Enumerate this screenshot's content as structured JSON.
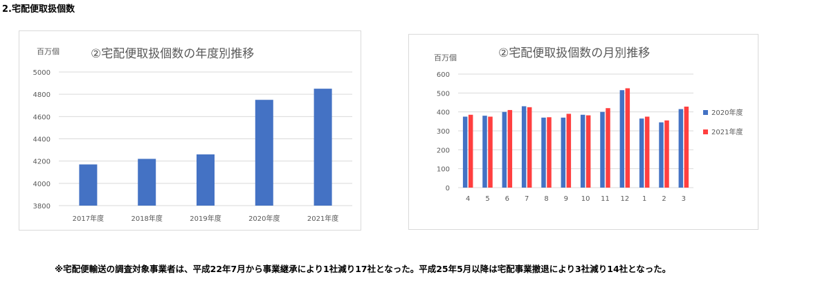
{
  "section_title": "2.宅配便取扱個数",
  "note": "※宅配便輸送の調査対象事業者は、平成22年7月から事業継承により1社減り17社となった。平成25年5月以降は宅配事業撤退により3社減り14社となった。",
  "colors": {
    "bar_2020": "#4472c4",
    "bar_2021": "#ff3f3f",
    "grid": "#d9d9d9",
    "axis_text": "#595959"
  },
  "chart_data": [
    {
      "type": "bar",
      "title": "②宅配便取扱個数の年度別推移",
      "ylabel": "百万個",
      "xlabel": "",
      "categories": [
        "2017年度",
        "2018年度",
        "2019年度",
        "2020年度",
        "2021年度"
      ],
      "values": [
        4170,
        4220,
        4260,
        4750,
        4850
      ],
      "ylim": [
        3800,
        5000
      ],
      "yticks": [
        3800,
        4000,
        4200,
        4400,
        4600,
        4800,
        5000
      ],
      "grid": true,
      "legend": "none"
    },
    {
      "type": "bar",
      "title": "②宅配便取扱個数の月別推移",
      "ylabel": "百万個",
      "xlabel": "",
      "categories": [
        "4",
        "5",
        "6",
        "7",
        "8",
        "9",
        "10",
        "11",
        "12",
        "1",
        "2",
        "3"
      ],
      "series": [
        {
          "name": "2020年度",
          "values": [
            375,
            380,
            400,
            430,
            370,
            370,
            385,
            400,
            515,
            365,
            345,
            415
          ]
        },
        {
          "name": "2021年度",
          "values": [
            385,
            375,
            410,
            425,
            372,
            390,
            382,
            420,
            525,
            375,
            355,
            428
          ]
        }
      ],
      "ylim": [
        0,
        600
      ],
      "yticks": [
        0,
        100,
        200,
        300,
        400,
        500,
        600
      ],
      "grid": true,
      "legend": "right"
    }
  ]
}
